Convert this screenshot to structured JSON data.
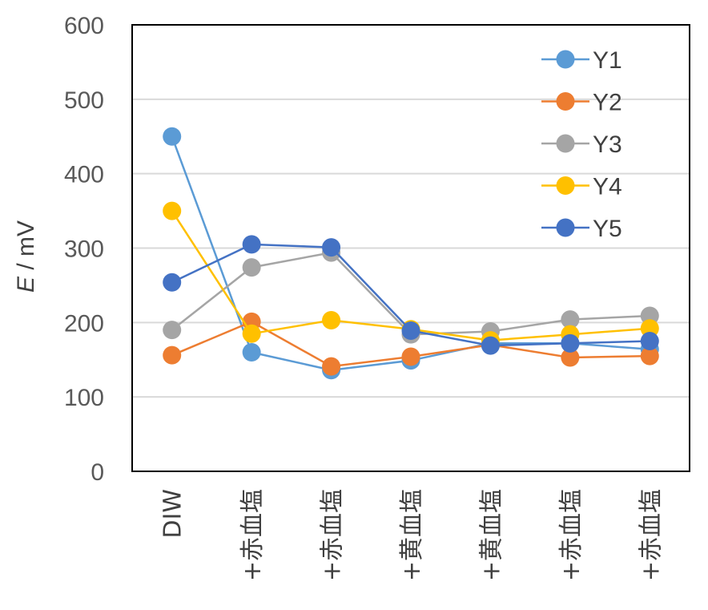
{
  "chart_data": {
    "type": "line",
    "categories": [
      "DIW",
      "+赤血塩",
      "+赤血塩",
      "+黄血塩",
      "+黄血塩",
      "+赤血塩",
      "+赤血塩"
    ],
    "series": [
      {
        "name": "Y1",
        "color": "#5B9BD5",
        "values": [
          450,
          160,
          136,
          149,
          172,
          172,
          164
        ]
      },
      {
        "name": "Y2",
        "color": "#ED7D31",
        "values": [
          156,
          201,
          141,
          154,
          170,
          153,
          155
        ]
      },
      {
        "name": "Y3",
        "color": "#A5A5A5",
        "values": [
          190,
          274,
          294,
          184,
          188,
          204,
          209
        ]
      },
      {
        "name": "Y4",
        "color": "#FFC000",
        "values": [
          350,
          185,
          203,
          191,
          176,
          184,
          192
        ]
      },
      {
        "name": "Y5",
        "color": "#4472C4",
        "values": [
          254,
          305,
          301,
          189,
          169,
          172,
          175
        ]
      }
    ],
    "y_ticks": [
      "0",
      "100",
      "200",
      "300",
      "400",
      "500",
      "600"
    ],
    "ylim": [
      0,
      600
    ],
    "ylabel_italic": "E",
    "ylabel_unit": " / mV",
    "grid": true,
    "legend_position": "top-right"
  }
}
